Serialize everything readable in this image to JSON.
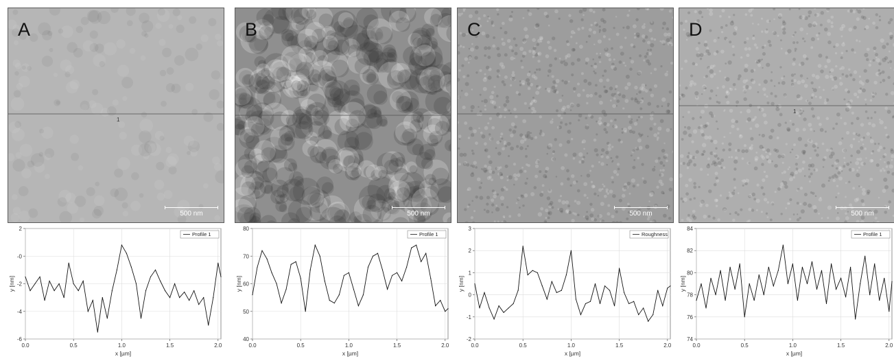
{
  "panels": [
    {
      "id": "A",
      "label": "A",
      "scale_label": "500 nm",
      "legend": "Profile 1",
      "profile_marker": "1",
      "texture": "smooth",
      "shade": "#b6b6b6"
    },
    {
      "id": "B",
      "label": "B",
      "scale_label": "500 nm",
      "legend": "Profile 1",
      "profile_marker": "",
      "texture": "grainy",
      "shade": "#8f8f8f"
    },
    {
      "id": "C",
      "label": "C",
      "scale_label": "500 nm",
      "legend": "Roughness",
      "profile_marker": "",
      "texture": "fine",
      "shade": "#9d9d9d"
    },
    {
      "id": "D",
      "label": "D",
      "scale_label": "500 nm",
      "legend": "Profile 1",
      "profile_marker": "1",
      "texture": "fine",
      "shade": "#aeaeae"
    }
  ],
  "chart_data": [
    {
      "type": "line",
      "title": "",
      "xlabel": "x [µm]",
      "ylabel": "y [nm]",
      "xlim": [
        0,
        2.03
      ],
      "ylim": [
        -6,
        2
      ],
      "xticks": [
        "0.0",
        "0.5",
        "1.0",
        "1.5",
        "2.0"
      ],
      "yticks": [
        "2",
        "-0",
        "-2",
        "-4",
        "-6"
      ],
      "series": [
        {
          "name": "Profile 1",
          "x": [
            0,
            0.05,
            0.1,
            0.15,
            0.2,
            0.25,
            0.3,
            0.35,
            0.4,
            0.45,
            0.5,
            0.55,
            0.6,
            0.65,
            0.7,
            0.75,
            0.8,
            0.85,
            0.9,
            0.95,
            1.0,
            1.05,
            1.1,
            1.15,
            1.2,
            1.25,
            1.3,
            1.35,
            1.4,
            1.45,
            1.5,
            1.55,
            1.6,
            1.65,
            1.7,
            1.75,
            1.8,
            1.85,
            1.9,
            1.95,
            2.0,
            2.03
          ],
          "y": [
            -1.5,
            -2.5,
            -2.0,
            -1.5,
            -3.2,
            -1.8,
            -2.5,
            -2.0,
            -3.0,
            -0.5,
            -2.0,
            -2.5,
            -1.8,
            -4.0,
            -3.2,
            -5.5,
            -3.0,
            -4.5,
            -2.5,
            -1.0,
            0.8,
            0.2,
            -0.8,
            -2.0,
            -4.5,
            -2.5,
            -1.5,
            -1.0,
            -1.8,
            -2.5,
            -3.0,
            -2.0,
            -3.0,
            -2.6,
            -3.2,
            -2.5,
            -3.5,
            -3.0,
            -5.0,
            -3.0,
            -0.5,
            -1.5
          ]
        }
      ]
    },
    {
      "type": "line",
      "title": "",
      "xlabel": "x [µm]",
      "ylabel": "y [nm]",
      "xlim": [
        0,
        2.03
      ],
      "ylim": [
        40,
        80
      ],
      "xticks": [
        "0.0",
        "0.5",
        "1.0",
        "1.5",
        "2.0"
      ],
      "yticks": [
        "80",
        "70",
        "60",
        "50",
        "40"
      ],
      "series": [
        {
          "name": "Profile 1",
          "x": [
            0,
            0.05,
            0.1,
            0.15,
            0.2,
            0.25,
            0.3,
            0.35,
            0.4,
            0.45,
            0.5,
            0.55,
            0.6,
            0.65,
            0.7,
            0.75,
            0.8,
            0.85,
            0.9,
            0.95,
            1.0,
            1.05,
            1.1,
            1.15,
            1.2,
            1.25,
            1.3,
            1.35,
            1.4,
            1.45,
            1.5,
            1.55,
            1.6,
            1.65,
            1.7,
            1.75,
            1.8,
            1.85,
            1.9,
            1.95,
            2.0,
            2.03
          ],
          "y": [
            56,
            66,
            72,
            69,
            64,
            60,
            53,
            58,
            67,
            68,
            62,
            50,
            65,
            74,
            70,
            61,
            54,
            53,
            56,
            63,
            64,
            58,
            52,
            56,
            66,
            70,
            71,
            65,
            58,
            63,
            64,
            61,
            66,
            73,
            74,
            68,
            71,
            62,
            52,
            54,
            50,
            51
          ]
        }
      ]
    },
    {
      "type": "line",
      "title": "",
      "xlabel": "x [µm]",
      "ylabel": "y [nm]",
      "xlim": [
        0,
        2.03
      ],
      "ylim": [
        -2,
        3
      ],
      "xticks": [
        "0.0",
        "0.5",
        "1.0",
        "1.5",
        "2.0"
      ],
      "yticks": [
        "3",
        "2",
        "1",
        "0",
        "-1",
        "-2"
      ],
      "series": [
        {
          "name": "Roughness",
          "x": [
            0,
            0.05,
            0.1,
            0.15,
            0.2,
            0.25,
            0.3,
            0.35,
            0.4,
            0.45,
            0.5,
            0.55,
            0.6,
            0.65,
            0.7,
            0.75,
            0.8,
            0.85,
            0.9,
            0.95,
            1.0,
            1.05,
            1.1,
            1.15,
            1.2,
            1.25,
            1.3,
            1.35,
            1.4,
            1.45,
            1.5,
            1.55,
            1.6,
            1.65,
            1.7,
            1.75,
            1.8,
            1.85,
            1.9,
            1.95,
            2.0,
            2.03
          ],
          "y": [
            0.5,
            -0.6,
            0.1,
            -0.6,
            -1.1,
            -0.5,
            -0.8,
            -0.6,
            -0.4,
            0.2,
            2.2,
            0.9,
            1.1,
            1.0,
            0.4,
            -0.2,
            0.6,
            0.1,
            0.2,
            0.9,
            2.0,
            -0.2,
            -0.9,
            -0.4,
            -0.3,
            0.5,
            -0.4,
            0.4,
            0.2,
            -0.5,
            1.2,
            0.1,
            -0.4,
            -0.3,
            -0.9,
            -0.6,
            -1.2,
            -0.9,
            0.2,
            -0.5,
            0.3,
            0.4
          ]
        }
      ]
    },
    {
      "type": "line",
      "title": "",
      "xlabel": "x [µm]",
      "ylabel": "y [nm]",
      "xlim": [
        0,
        2.03
      ],
      "ylim": [
        74,
        84
      ],
      "xticks": [
        "0.0",
        "0.5",
        "1.0",
        "1.5",
        "2.0"
      ],
      "yticks": [
        "84",
        "82",
        "80",
        "78",
        "76",
        "74"
      ],
      "series": [
        {
          "name": "Profile 1",
          "x": [
            0,
            0.05,
            0.1,
            0.15,
            0.2,
            0.25,
            0.3,
            0.35,
            0.4,
            0.45,
            0.5,
            0.55,
            0.6,
            0.65,
            0.7,
            0.75,
            0.8,
            0.85,
            0.9,
            0.95,
            1.0,
            1.05,
            1.1,
            1.15,
            1.2,
            1.25,
            1.3,
            1.35,
            1.4,
            1.45,
            1.5,
            1.55,
            1.6,
            1.65,
            1.7,
            1.75,
            1.8,
            1.85,
            1.9,
            1.95,
            2.0,
            2.03
          ],
          "y": [
            77.5,
            79.0,
            76.8,
            79.5,
            78.0,
            80.2,
            77.5,
            80.5,
            78.5,
            80.8,
            76.0,
            79.0,
            77.5,
            79.8,
            78.0,
            80.5,
            78.8,
            80.2,
            82.5,
            79.0,
            80.8,
            77.5,
            80.5,
            79.0,
            81.0,
            78.5,
            80.2,
            77.2,
            80.8,
            78.5,
            79.5,
            77.8,
            80.5,
            75.8,
            79.0,
            81.5,
            78.0,
            80.8,
            77.5,
            79.5,
            76.5,
            79.2
          ]
        }
      ]
    }
  ]
}
